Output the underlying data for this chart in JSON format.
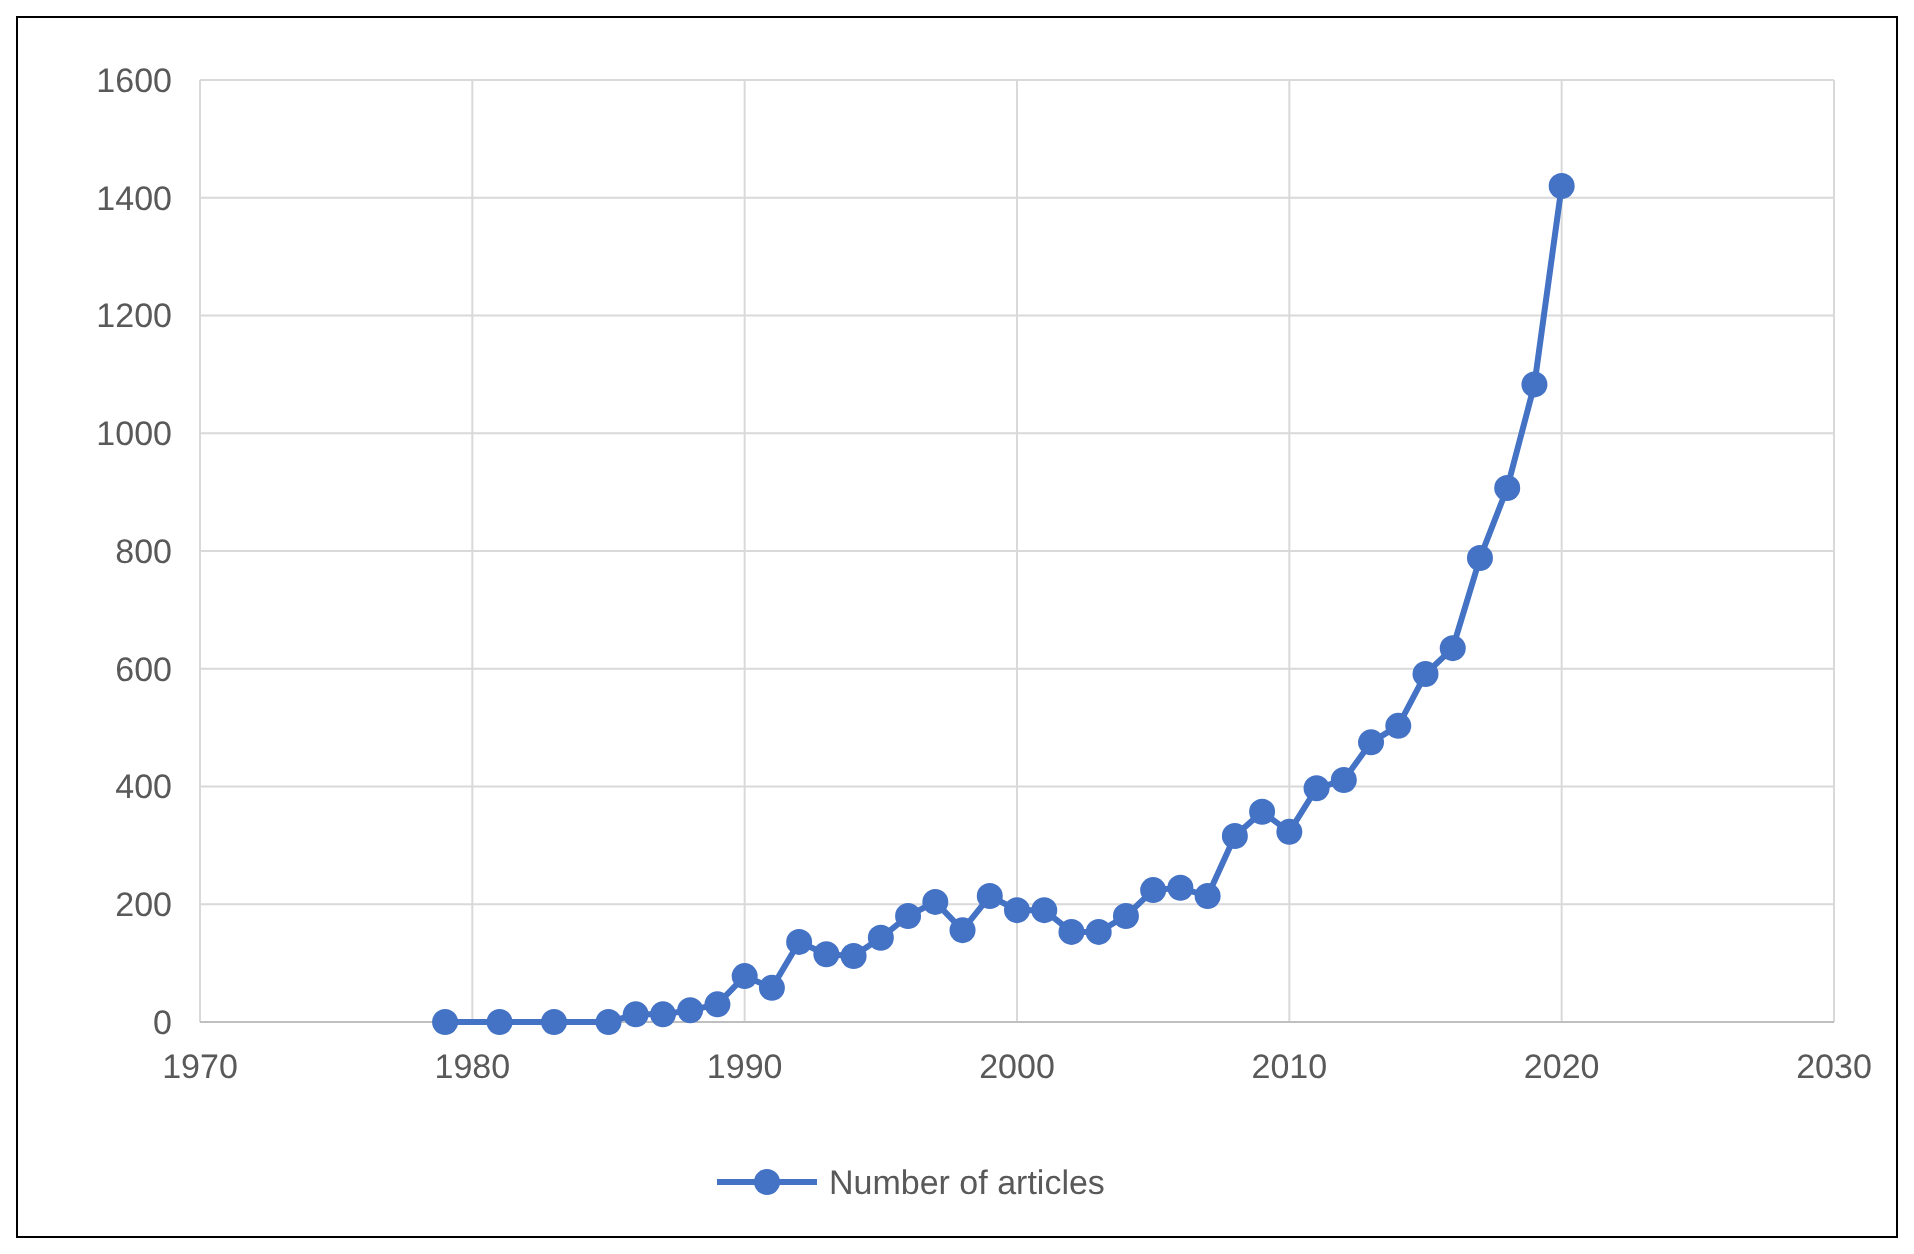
{
  "chart_data": {
    "type": "line",
    "x": [
      1979,
      1981,
      1983,
      1985,
      1986,
      1987,
      1988,
      1989,
      1990,
      1991,
      1992,
      1993,
      1994,
      1995,
      1996,
      1997,
      1998,
      1999,
      2000,
      2001,
      2002,
      2003,
      2004,
      2005,
      2006,
      2007,
      2008,
      2009,
      2010,
      2011,
      2012,
      2013,
      2014,
      2015,
      2016,
      2017,
      2018,
      2019,
      2020
    ],
    "series": [
      {
        "name": "Number of articles",
        "color": "#4472c4",
        "values": [
          0,
          0,
          0,
          0,
          13,
          13,
          20,
          30,
          78,
          58,
          136,
          115,
          112,
          143,
          180,
          204,
          156,
          214,
          190,
          190,
          153,
          153,
          180,
          224,
          228,
          214,
          316,
          357,
          323,
          397,
          411,
          475,
          503,
          591,
          635,
          788,
          907,
          1083,
          1420
        ]
      }
    ],
    "xlim": [
      1970,
      2030
    ],
    "xticks": [
      1970,
      1980,
      1990,
      2000,
      2010,
      2020,
      2030
    ],
    "ylim": [
      0,
      1600
    ],
    "yticks": [
      0,
      200,
      400,
      600,
      800,
      1000,
      1200,
      1400,
      1600
    ],
    "grid": true,
    "legend": "bottom",
    "marker": "circle",
    "line_style": "solid"
  }
}
